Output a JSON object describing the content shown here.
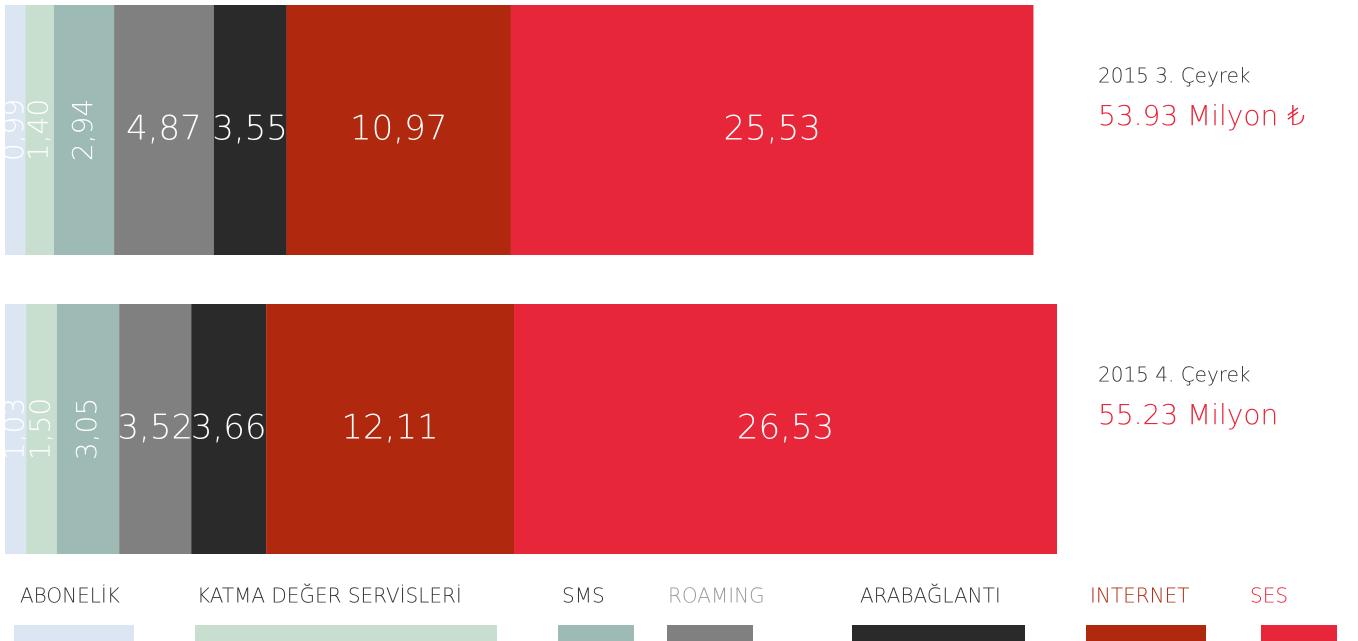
{
  "chart_data": {
    "type": "bar",
    "orientation": "horizontal",
    "stacked": true,
    "categories": [
      "2015 3. Çeyrek",
      "2015 4. Çeyrek"
    ],
    "totals": [
      "53.93 Milyon ₺",
      "55.23 Milyon"
    ],
    "series": [
      {
        "name": "ABONELİK",
        "color": "#dce6f2",
        "values": [
          0.99,
          1.03
        ],
        "value_labels": [
          "0,99",
          "1,03"
        ]
      },
      {
        "name": "KATMA DEĞER SERVİSLERİ",
        "color": "#c8dfd0",
        "values": [
          1.4,
          1.5
        ],
        "value_labels": [
          "1,40",
          "1,50"
        ]
      },
      {
        "name": "SMS",
        "color": "#9ebab5",
        "values": [
          2.94,
          3.05
        ],
        "value_labels": [
          "2,94",
          "3,05"
        ]
      },
      {
        "name": "ROAMING",
        "color": "#808080",
        "values": [
          4.87,
          3.52
        ],
        "value_labels": [
          "4,87",
          "3,52"
        ]
      },
      {
        "name": "ARABAĞLANTI",
        "color": "#2a2a2a",
        "values": [
          3.55,
          3.66
        ],
        "value_labels": [
          "3,55",
          "3,66"
        ]
      },
      {
        "name": "INTERNET",
        "color": "#b0280e",
        "values": [
          10.97,
          12.11
        ],
        "value_labels": [
          "10,97",
          "12,11"
        ]
      },
      {
        "name": "SES",
        "color": "#e8263a",
        "values": [
          25.53,
          26.53
        ],
        "value_labels": [
          "25,53",
          "26,53"
        ]
      }
    ]
  }
}
